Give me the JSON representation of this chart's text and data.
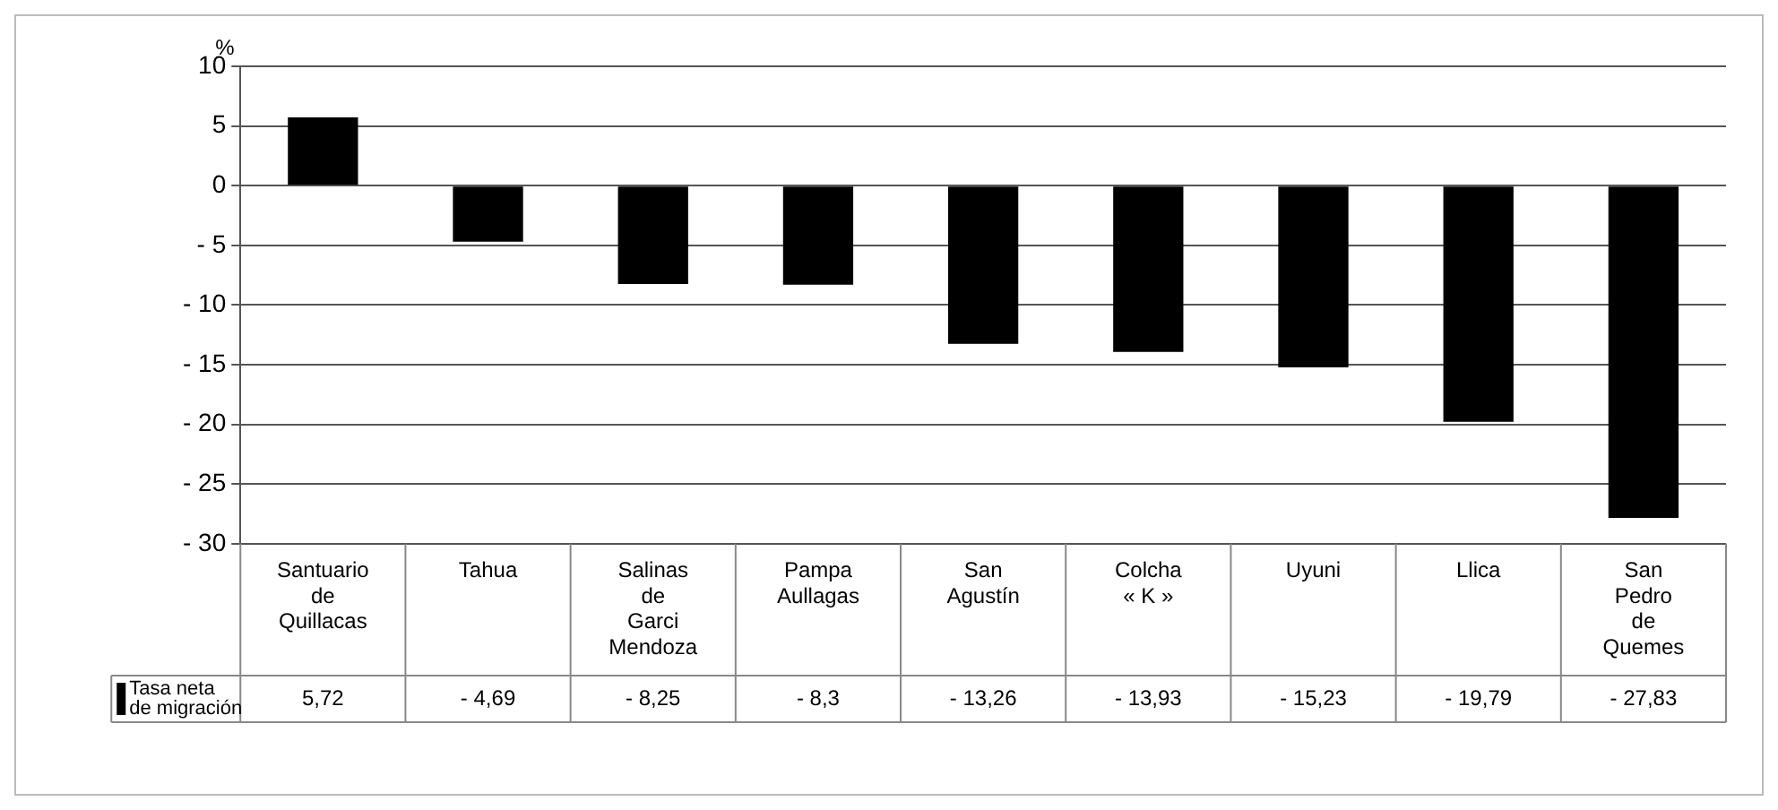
{
  "chart_data": {
    "type": "bar",
    "ylabel": "%",
    "categories": [
      "Santuario de Quillacas",
      "Tahua",
      "Salinas de Garci Mendoza",
      "Pampa Aullagas",
      "San Agustín",
      "Colcha « K »",
      "Uyuni",
      "Llica",
      "San Pedro de Quemes"
    ],
    "series": [
      {
        "name": "Tasa neta de migración",
        "color": "#000000",
        "values": [
          5.72,
          -4.69,
          -8.25,
          -8.3,
          -13.26,
          -13.93,
          -15.23,
          -19.79,
          -27.83
        ],
        "value_labels": [
          "5,72",
          "- 4,69",
          "- 8,25",
          "- 8,3",
          "- 13,26",
          "- 13,93",
          "- 15,23",
          "- 19,79",
          "- 27,83"
        ]
      }
    ],
    "ylim": [
      -30,
      10
    ],
    "yticks": [
      {
        "value": -30,
        "label": "- 30"
      },
      {
        "value": -25,
        "label": "- 25"
      },
      {
        "value": -20,
        "label": "- 20"
      },
      {
        "value": -15,
        "label": "- 15"
      },
      {
        "value": -10,
        "label": "- 10"
      },
      {
        "value": -5,
        "label": "- 5"
      },
      0,
      5,
      10
    ],
    "grid": "y",
    "legend": "bottom left"
  }
}
